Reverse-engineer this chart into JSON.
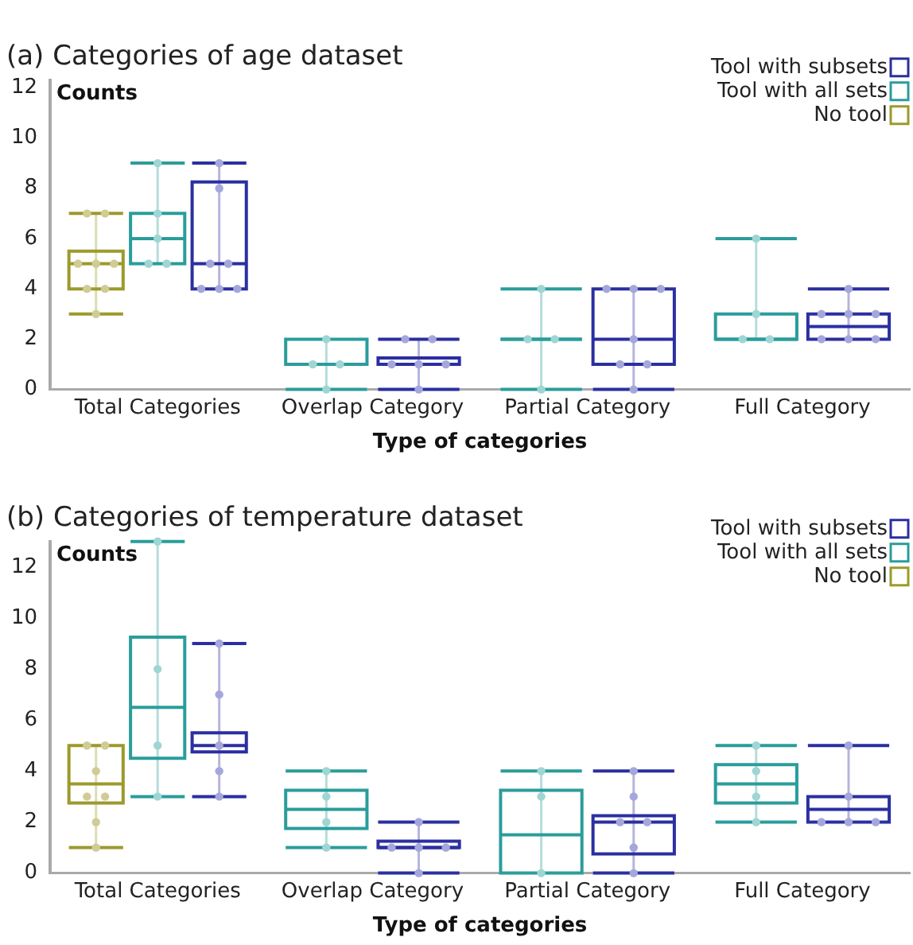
{
  "chart_data": [
    {
      "type": "box",
      "title": "(a) Categories of age dataset",
      "xlabel": "Type of categories",
      "ylabel": "Counts",
      "legend": "top right",
      "categories": [
        "Total Categories",
        "Overlap Category",
        "Partial Category",
        "Full Category"
      ],
      "ylim": [
        0,
        12.3
      ],
      "yticks": [
        0,
        2,
        4,
        6,
        8,
        10,
        12
      ],
      "series": [
        {
          "type": "box",
          "name": "No tool",
          "color": "#9c9a2c",
          "boxes": [
            {
              "low": 3,
              "q1": 4,
              "median": 5,
              "q3": 5.5,
              "high": 7
            },
            null,
            null,
            null
          ]
        },
        {
          "type": "scatter",
          "color": "#cfcd95",
          "x": [
            "Total Categories",
            "Total Categories",
            "Total Categories",
            "Total Categories",
            "Total Categories",
            "Total Categories",
            "Total Categories",
            "Total Categories"
          ],
          "values": [
            7,
            7,
            5,
            5,
            5,
            4,
            4,
            3
          ]
        },
        {
          "type": "box",
          "name": "Tool with all sets",
          "color": "#2a9d9b",
          "boxes": [
            {
              "low": 5,
              "q1": 5,
              "median": 6,
              "q3": 7,
              "high": 9
            },
            {
              "low": 0,
              "q1": 1,
              "median": 1,
              "q3": 2,
              "high": 2
            },
            {
              "low": 0,
              "q1": 2,
              "median": 2,
              "q3": 2,
              "high": 4
            },
            {
              "low": 2,
              "q1": 2,
              "median": 2,
              "q3": 3,
              "high": 6
            }
          ]
        },
        {
          "type": "scatter",
          "color": "#9ed6d4",
          "x": [
            "Total Categories",
            "Total Categories",
            "Total Categories",
            "Total Categories",
            "Total Categories",
            "Overlap Category",
            "Overlap Category",
            "Overlap Category",
            "Overlap Category",
            "Partial Category",
            "Partial Category",
            "Partial Category",
            "Partial Category",
            "Full Category",
            "Full Category",
            "Full Category",
            "Full Category"
          ],
          "values": [
            9,
            7,
            6,
            5,
            5,
            2,
            1,
            1,
            0,
            4,
            2,
            2,
            0,
            6,
            3,
            2,
            2
          ]
        },
        {
          "type": "box",
          "name": "Tool with subsets",
          "color": "#2b2fa0",
          "boxes": [
            {
              "low": 4,
              "q1": 4,
              "median": 5,
              "q3": 8.25,
              "high": 9
            },
            {
              "low": 0,
              "q1": 1,
              "median": 1,
              "q3": 1.25,
              "high": 2
            },
            {
              "low": 0,
              "q1": 1,
              "median": 2,
              "q3": 4,
              "high": 4
            },
            {
              "low": 2,
              "q1": 2,
              "median": 2.5,
              "q3": 3,
              "high": 4
            }
          ]
        },
        {
          "type": "scatter",
          "color": "#a5a7dc",
          "x": [
            "Total Categories",
            "Total Categories",
            "Total Categories",
            "Total Categories",
            "Total Categories",
            "Total Categories",
            "Total Categories",
            "Overlap Category",
            "Overlap Category",
            "Overlap Category",
            "Overlap Category",
            "Overlap Category",
            "Overlap Category",
            "Partial Category",
            "Partial Category",
            "Partial Category",
            "Partial Category",
            "Partial Category",
            "Partial Category",
            "Partial Category",
            "Full Category",
            "Full Category",
            "Full Category",
            "Full Category",
            "Full Category",
            "Full Category",
            "Full Category"
          ],
          "values": [
            9,
            8,
            5,
            5,
            4,
            4,
            4,
            2,
            2,
            1,
            1,
            1,
            0,
            4,
            4,
            4,
            2,
            1,
            1,
            0,
            4,
            3,
            3,
            3,
            2,
            2,
            2
          ]
        }
      ]
    },
    {
      "type": "box",
      "title": "(b) Categories of temperature dataset",
      "xlabel": "Type of categories",
      "ylabel": "Counts",
      "legend": "top right",
      "categories": [
        "Total Categories",
        "Overlap Category",
        "Partial Category",
        "Full Category"
      ],
      "ylim": [
        0,
        13
      ],
      "yticks": [
        0,
        2,
        4,
        6,
        8,
        10,
        12
      ],
      "series": [
        {
          "type": "box",
          "name": "No tool",
          "color": "#9c9a2c",
          "boxes": [
            {
              "low": 1,
              "q1": 2.75,
              "median": 3.5,
              "q3": 5,
              "high": 5
            },
            null,
            null,
            null
          ]
        },
        {
          "type": "scatter",
          "color": "#cfcd95",
          "x": [
            "Total Categories",
            "Total Categories",
            "Total Categories",
            "Total Categories",
            "Total Categories",
            "Total Categories",
            "Total Categories"
          ],
          "values": [
            5,
            5,
            4,
            3,
            3,
            2,
            1
          ]
        },
        {
          "type": "box",
          "name": "Tool with all sets",
          "color": "#2a9d9b",
          "boxes": [
            {
              "low": 3,
              "q1": 4.5,
              "median": 6.5,
              "q3": 9.25,
              "high": 13
            },
            {
              "low": 1,
              "q1": 1.75,
              "median": 2.5,
              "q3": 3.25,
              "high": 4
            },
            {
              "low": 0,
              "q1": 0,
              "median": 1.5,
              "q3": 3.25,
              "high": 4
            },
            {
              "low": 2,
              "q1": 2.75,
              "median": 3.5,
              "q3": 4.25,
              "high": 5
            }
          ]
        },
        {
          "type": "scatter",
          "color": "#9ed6d4",
          "x": [
            "Total Categories",
            "Total Categories",
            "Total Categories",
            "Total Categories",
            "Overlap Category",
            "Overlap Category",
            "Overlap Category",
            "Overlap Category",
            "Partial Category",
            "Partial Category",
            "Partial Category",
            "Full Category",
            "Full Category",
            "Full Category",
            "Full Category"
          ],
          "values": [
            13,
            8,
            5,
            3,
            4,
            3,
            2,
            1,
            4,
            3,
            0,
            5,
            4,
            3,
            2
          ]
        },
        {
          "type": "box",
          "name": "Tool with subsets",
          "color": "#2b2fa0",
          "boxes": [
            {
              "low": 3,
              "q1": 4.75,
              "median": 5,
              "q3": 5.5,
              "high": 9
            },
            {
              "low": 0,
              "q1": 1,
              "median": 1,
              "q3": 1.25,
              "high": 2
            },
            {
              "low": 0,
              "q1": 0.75,
              "median": 2,
              "q3": 2.25,
              "high": 4
            },
            {
              "low": 2,
              "q1": 2,
              "median": 2.5,
              "q3": 3,
              "high": 5
            }
          ]
        },
        {
          "type": "scatter",
          "color": "#a5a7dc",
          "x": [
            "Total Categories",
            "Total Categories",
            "Total Categories",
            "Total Categories",
            "Total Categories",
            "Overlap Category",
            "Overlap Category",
            "Overlap Category",
            "Overlap Category",
            "Overlap Category",
            "Partial Category",
            "Partial Category",
            "Partial Category",
            "Partial Category",
            "Partial Category",
            "Partial Category",
            "Full Category",
            "Full Category",
            "Full Category",
            "Full Category",
            "Full Category"
          ],
          "values": [
            9,
            7,
            5,
            4,
            3,
            2,
            1,
            1,
            1,
            0,
            4,
            3,
            2,
            2,
            1,
            0,
            5,
            3,
            2,
            2,
            2
          ]
        }
      ]
    }
  ]
}
